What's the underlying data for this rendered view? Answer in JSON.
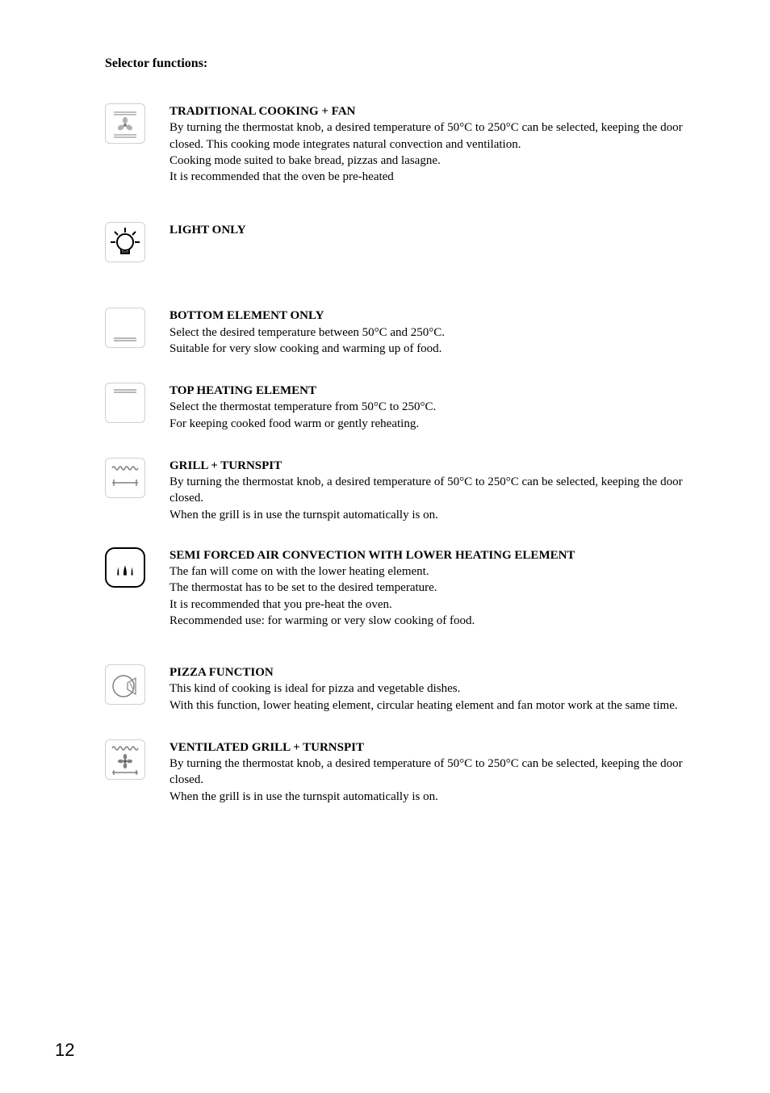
{
  "page": {
    "title": "Selector functions:",
    "number": "12"
  },
  "items": [
    {
      "icon": "fan-lines",
      "icon_kind": "box",
      "title": "TRADITIONAL COOKING + FAN",
      "text": "By turning the thermostat knob, a desired temperature of  50°C to 250°C can be selected, keeping the door closed. This cooking mode integrates natural convection and ventilation.\nCooking mode suited to bake bread, pizzas and lasagne.\nIt is recommended that the oven be pre-heated"
    },
    {
      "icon": "light-bulb",
      "icon_kind": "box",
      "title": "LIGHT ONLY",
      "text": ""
    },
    {
      "icon": "bottom-line",
      "icon_kind": "box",
      "title": "BOTTOM ELEMENT ONLY",
      "text": "Select the desired temperature between 50°C and 250°C.\nSuitable for very slow cooking and warming up of food."
    },
    {
      "icon": "top-line",
      "icon_kind": "box",
      "title": "TOP HEATING ELEMENT",
      "text": "Select the thermostat temperature from 50°C to 250°C.\nFor keeping cooked food warm or gently reheating."
    },
    {
      "icon": "grill-turnspit",
      "icon_kind": "box",
      "title": "GRILL + TURNSPIT",
      "text": "By turning the thermostat knob, a desired temperature of  50°C to 250°C can be selected, keeping the door closed.\nWhen the grill is in use the turnspit automatically is on."
    },
    {
      "icon": "semi-forced",
      "icon_kind": "shell",
      "title": "SEMI FORCED AIR CONVECTION WITH LOWER HEATING ELEMENT",
      "text": "The fan will come on with the lower heating element.\nThe thermostat has to be set to the desired temperature.\nIt is recommended that you pre-heat the oven.\nRecommended use: for warming or very slow cooking of food."
    },
    {
      "icon": "pizza",
      "icon_kind": "box",
      "title": "PIZZA FUNCTION",
      "text": "This kind of cooking is ideal for pizza and vegetable dishes.\nWith this function, lower heating element, circular heating element and fan motor work at the same time."
    },
    {
      "icon": "vent-grill-turnspit",
      "icon_kind": "box",
      "title": "VENTILATED GRILL + TURNSPIT",
      "text": "By turning the thermostat knob, a desired temperature of  50°C to 250°C can be selected, keeping the door closed.\nWhen the grill is in use the turnspit automatically is on."
    }
  ]
}
